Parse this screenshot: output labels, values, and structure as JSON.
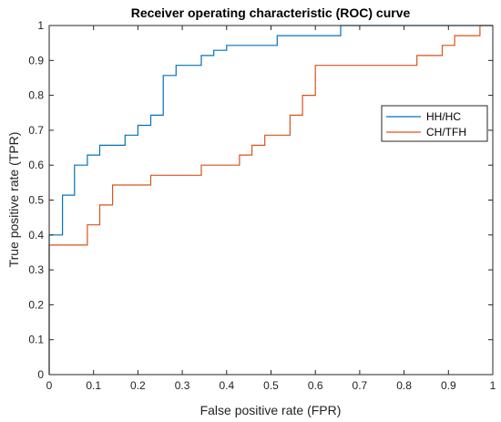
{
  "chart_data": {
    "type": "line",
    "title": "Receiver operating characteristic (ROC) curve",
    "xlabel": "False positive rate (FPR)",
    "ylabel": "True positive rate (TPR)",
    "xlim": [
      0,
      1
    ],
    "ylim": [
      0,
      1
    ],
    "x_ticks": [
      "0",
      "0.1",
      "0.2",
      "0.3",
      "0.4",
      "0.5",
      "0.6",
      "0.7",
      "0.8",
      "0.9",
      "1"
    ],
    "y_ticks": [
      "0",
      "0.1",
      "0.2",
      "0.3",
      "0.4",
      "0.5",
      "0.6",
      "0.7",
      "0.8",
      "0.9",
      "1"
    ],
    "grid": false,
    "legend_position": "right",
    "series": [
      {
        "name": "HH/HC",
        "color": "#0072BD",
        "x": [
          0,
          0,
          0.03,
          0.03,
          0.057,
          0.057,
          0.086,
          0.086,
          0.114,
          0.114,
          0.171,
          0.171,
          0.2,
          0.2,
          0.229,
          0.229,
          0.257,
          0.257,
          0.286,
          0.286,
          0.343,
          0.343,
          0.371,
          0.371,
          0.4,
          0.4,
          0.514,
          0.514,
          0.657,
          0.657,
          1.0
        ],
        "y": [
          0,
          0.4,
          0.4,
          0.514,
          0.514,
          0.6,
          0.6,
          0.629,
          0.629,
          0.657,
          0.657,
          0.686,
          0.686,
          0.714,
          0.714,
          0.743,
          0.743,
          0.857,
          0.857,
          0.886,
          0.886,
          0.914,
          0.914,
          0.929,
          0.929,
          0.943,
          0.943,
          0.971,
          0.971,
          1.0,
          1.0
        ]
      },
      {
        "name": "CH/TFH",
        "color": "#D95319",
        "x": [
          0,
          0,
          0.086,
          0.086,
          0.114,
          0.114,
          0.143,
          0.143,
          0.229,
          0.229,
          0.343,
          0.343,
          0.429,
          0.429,
          0.457,
          0.457,
          0.486,
          0.486,
          0.543,
          0.543,
          0.571,
          0.571,
          0.6,
          0.6,
          0.829,
          0.829,
          0.886,
          0.886,
          0.914,
          0.914,
          0.971,
          0.971,
          1.0
        ],
        "y": [
          0,
          0.371,
          0.371,
          0.429,
          0.429,
          0.486,
          0.486,
          0.543,
          0.543,
          0.571,
          0.571,
          0.6,
          0.6,
          0.629,
          0.629,
          0.657,
          0.657,
          0.686,
          0.686,
          0.743,
          0.743,
          0.8,
          0.8,
          0.886,
          0.886,
          0.914,
          0.914,
          0.943,
          0.943,
          0.971,
          0.971,
          1.0,
          1.0
        ]
      }
    ]
  }
}
